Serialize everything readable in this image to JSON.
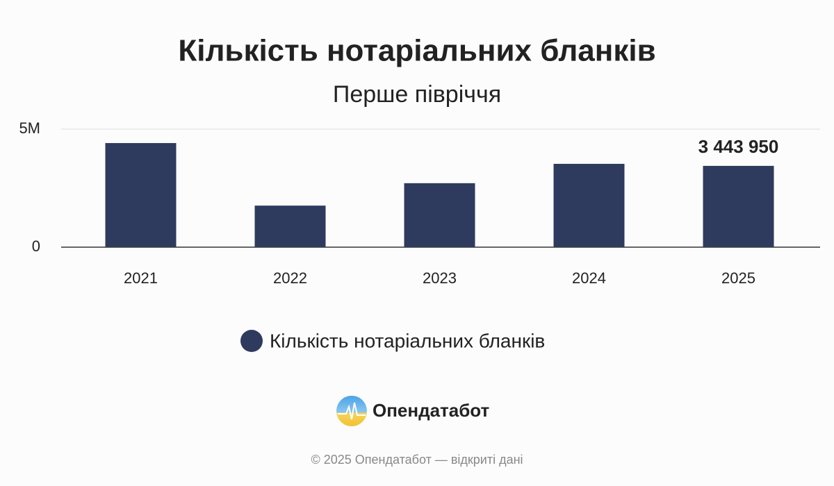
{
  "chart_data": {
    "type": "bar",
    "title": "Кількість нотаріальних бланків",
    "subtitle": "Перше півріччя",
    "categories": [
      "2021",
      "2022",
      "2023",
      "2024",
      "2025"
    ],
    "series": [
      {
        "name": "Кількість нотаріальних бланків",
        "color": "#2e3b5e",
        "values": [
          4410000,
          1760000,
          2710000,
          3530000,
          3443950
        ],
        "value_labels": [
          null,
          null,
          null,
          null,
          "3 443 950"
        ]
      }
    ],
    "ylim": [
      0,
      5000000
    ],
    "yticks": [
      0,
      {
        "value": 5000000,
        "label": "5M"
      }
    ],
    "grid": true,
    "legend": "bottom"
  },
  "branding": {
    "logo_text": "Опендатабот",
    "footer": "© 2025 Опендатабот — відкриті дані"
  }
}
